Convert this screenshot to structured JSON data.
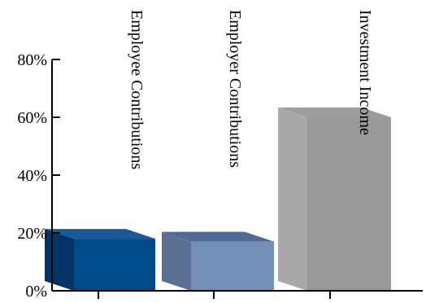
{
  "chart_data": {
    "type": "bar",
    "style": "3d-column",
    "categories": [
      "Employee Contributions",
      "Employer Contributions",
      "Investment Income"
    ],
    "values": [
      18,
      17,
      60
    ],
    "ylim": [
      0,
      80
    ],
    "yticks": [
      0,
      20,
      40,
      60,
      80
    ],
    "ytick_labels": [
      "0%",
      "20%",
      "40%",
      "60%",
      "80%"
    ],
    "colors": {
      "Employee Contributions": {
        "front": "#004a8a",
        "side": "#003466",
        "top": "#1a5a96"
      },
      "Employer Contributions": {
        "front": "#7490b8",
        "side": "#5a6f92",
        "top": "#4e6a95"
      },
      "Investment Income": {
        "front": "#999999",
        "side": "#a9a9a9",
        "top": "#9d9d9d"
      }
    },
    "grid": false,
    "legend": "none"
  }
}
